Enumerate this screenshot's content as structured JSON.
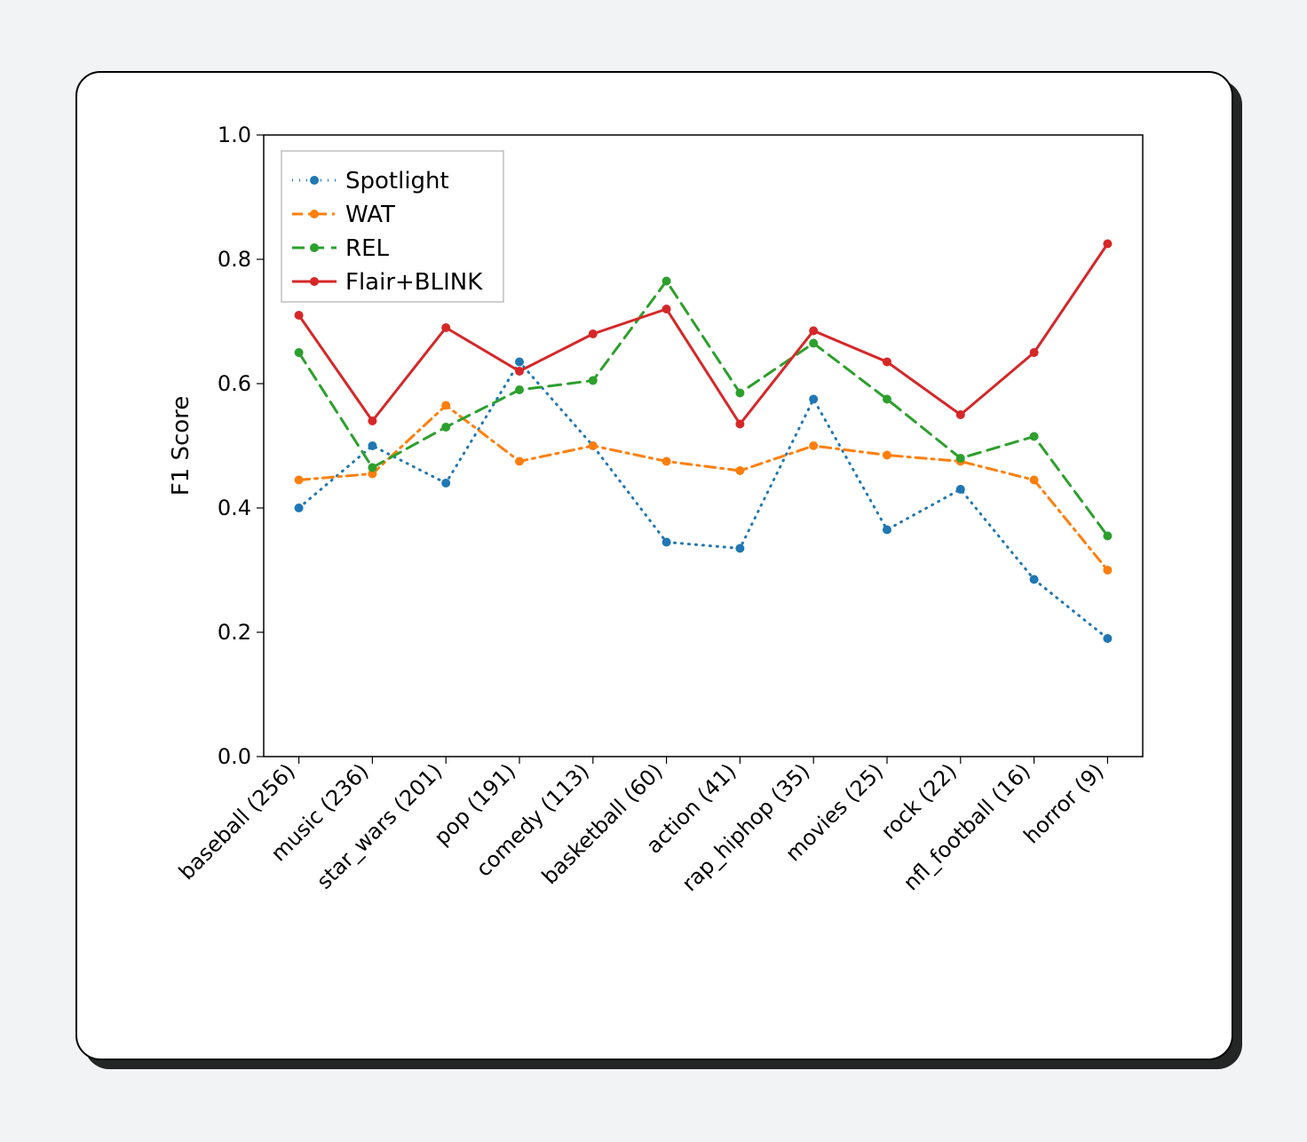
{
  "chart": {
    "type": "line",
    "background_card": {
      "fill": "#ffffff",
      "border_color": "#000000",
      "border_width": 2,
      "border_radius": 28,
      "shadow_color": "rgba(0,0,0,0.85)"
    },
    "page_background": "#f2f3f4",
    "ylabel": "F1 Score",
    "ylabel_fontsize": 26,
    "ylim": [
      0.0,
      1.0
    ],
    "yticks": [
      0.0,
      0.2,
      0.4,
      0.6,
      0.8,
      1.0
    ],
    "ytick_fontsize": 24,
    "xtick_fontsize": 24,
    "xtick_rotation": 45,
    "categories": [
      "baseball (256)",
      "music (236)",
      "star_wars (201)",
      "pop (191)",
      "comedy (113)",
      "basketball (60)",
      "action (41)",
      "rap_hiphop (35)",
      "movies (25)",
      "rock (22)",
      "nfl_football (16)",
      "horror (9)"
    ],
    "series": [
      {
        "name": "Spotlight",
        "color": "#1f77b4",
        "dash": "1 7",
        "linewidth": 3,
        "marker_size": 5,
        "values": [
          0.4,
          0.5,
          0.44,
          0.635,
          0.5,
          0.345,
          0.335,
          0.575,
          0.365,
          0.43,
          0.285,
          0.19
        ]
      },
      {
        "name": "WAT",
        "color": "#ff7f0e",
        "dash": "12 6 3 6",
        "linewidth": 3,
        "marker_size": 5,
        "values": [
          0.445,
          0.455,
          0.565,
          0.475,
          0.5,
          0.475,
          0.46,
          0.5,
          0.485,
          0.475,
          0.445,
          0.3
        ]
      },
      {
        "name": "REL",
        "color": "#2ca02c",
        "dash": "14 8",
        "linewidth": 3,
        "marker_size": 5,
        "values": [
          0.65,
          0.465,
          0.53,
          0.59,
          0.605,
          0.765,
          0.585,
          0.665,
          0.575,
          0.48,
          0.515,
          0.355
        ]
      },
      {
        "name": "Flair+BLINK",
        "color": "#d62728",
        "dash": "",
        "linewidth": 3,
        "marker_size": 5,
        "values": [
          0.71,
          0.54,
          0.69,
          0.62,
          0.68,
          0.72,
          0.535,
          0.685,
          0.635,
          0.55,
          0.65,
          0.825
        ]
      }
    ],
    "legend": {
      "position": "upper-left",
      "frame_color": "#bfbfbf",
      "frame_fill": "#ffffff",
      "fontsize": 26
    },
    "axis_color": "#000000",
    "text_color": "#000000"
  }
}
